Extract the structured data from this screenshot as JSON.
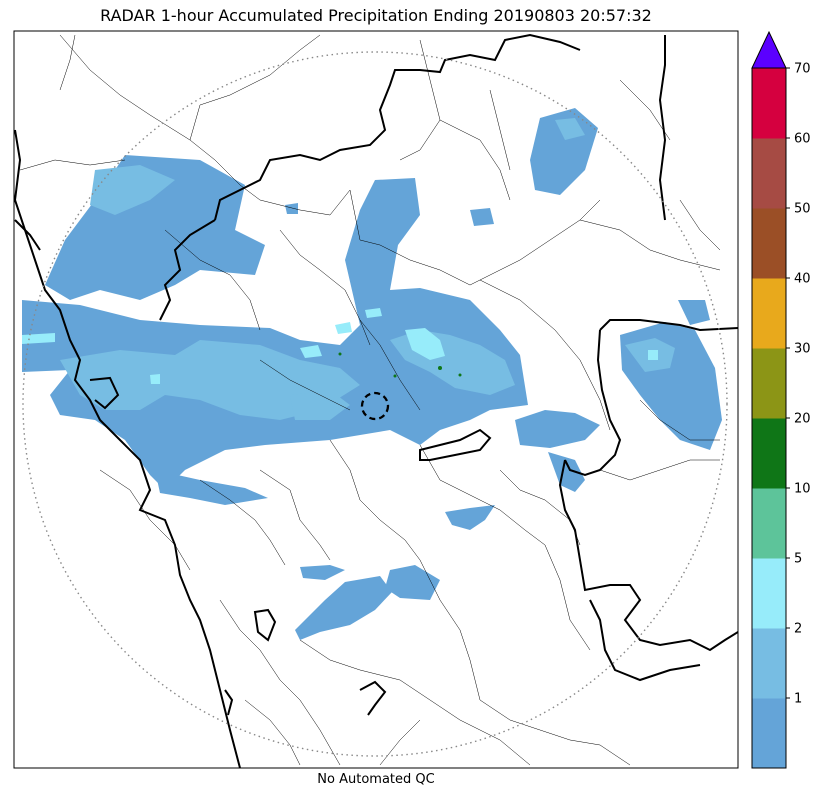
{
  "title": "RADAR 1-hour Accumulated Precipitation Ending 20190803 20:57:32",
  "subtitle": "No Automated QC",
  "colorbar": {
    "extend": "max",
    "tick_labels": [
      "1",
      "2",
      "5",
      "10",
      "20",
      "30",
      "40",
      "50",
      "60",
      "70"
    ],
    "bins": [
      {
        "color": "#64a4d8"
      },
      {
        "color": "#77bde3"
      },
      {
        "color": "#97ecfa"
      },
      {
        "color": "#5dc49a"
      },
      {
        "color": "#0f7617"
      },
      {
        "color": "#8c9516"
      },
      {
        "color": "#e8a91c"
      },
      {
        "color": "#9b4f26"
      },
      {
        "color": "#a64b44"
      },
      {
        "color": "#d5003f"
      }
    ],
    "over_color": "#5b00ff"
  },
  "map_layers": {
    "rain_color_1": "#64a4d8",
    "rain_color_2": "#77bde3",
    "rain_color_3": "#97ecfa",
    "range_ring": "dotted",
    "radar_site_marker": "dashed-circle"
  }
}
